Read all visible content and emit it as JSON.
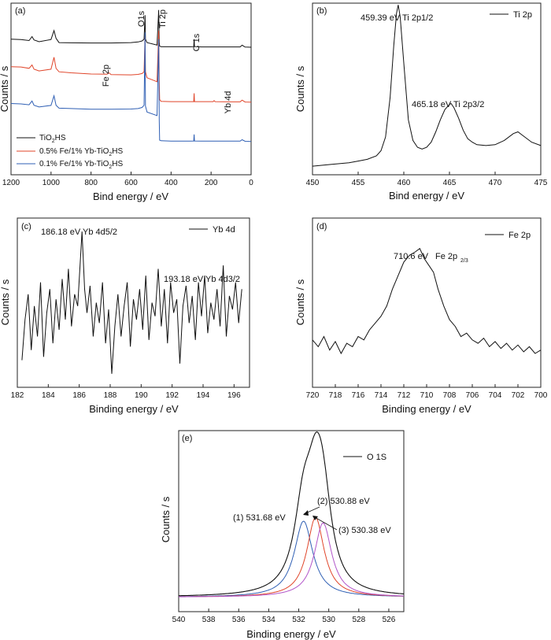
{
  "chart_data": [
    {
      "panel": "(a)",
      "type": "line",
      "xlabel": "Bind energy / eV",
      "ylabel": "Counts / s",
      "xlim": [
        1200,
        0
      ],
      "ylim": [
        0,
        100
      ],
      "xticks": [
        1200,
        1000,
        800,
        600,
        400,
        200,
        0
      ],
      "colors": {
        "s1": "#111111",
        "s2": "#e0452a",
        "s3": "#2f5fb4"
      },
      "series": [
        {
          "name": "TiO₂HS",
          "color": "#111111",
          "x": [
            1200,
            1150,
            1110,
            1095,
            1085,
            1060,
            1000,
            985,
            975,
            960,
            900,
            800,
            700,
            600,
            565,
            545,
            535,
            530,
            528,
            520,
            470,
            462,
            459,
            457,
            450,
            400,
            300,
            287,
            285,
            283,
            250,
            150,
            100,
            55,
            45,
            30,
            0
          ],
          "y": [
            79,
            78.8,
            78.2,
            80.5,
            78.6,
            77.5,
            78.8,
            84,
            79.5,
            77,
            76.9,
            76.8,
            76.8,
            77,
            77.4,
            78,
            79,
            93,
            79,
            77,
            75.6,
            96,
            77,
            75,
            74.6,
            74.6,
            74.6,
            74.7,
            79,
            74.7,
            74.5,
            74.5,
            74.5,
            74.5,
            75.5,
            74.4,
            74.3
          ]
        },
        {
          "name": "0.5% Fe/1% Yb-TiO₂HS",
          "color": "#e0452a",
          "x": [
            1200,
            1150,
            1110,
            1095,
            1085,
            1060,
            1000,
            985,
            975,
            960,
            900,
            800,
            720,
            710,
            700,
            600,
            565,
            545,
            535,
            530,
            528,
            520,
            470,
            462,
            459,
            457,
            450,
            400,
            300,
            287,
            285,
            283,
            250,
            190,
            185,
            180,
            100,
            55,
            45,
            30,
            0
          ],
          "y": [
            63,
            62.8,
            62,
            64,
            61.5,
            60.5,
            61.5,
            68.5,
            62,
            60,
            59.4,
            58.7,
            58.6,
            59.4,
            58.4,
            58.2,
            58.5,
            59,
            60,
            80.5,
            60,
            56.5,
            54.2,
            84,
            55,
            43.8,
            42.8,
            42.6,
            42.6,
            42.6,
            47.5,
            42.6,
            42.6,
            42.6,
            43.2,
            42.6,
            42.5,
            42.5,
            43.5,
            42.4,
            42.3
          ]
        },
        {
          "name": "0.1% Fe/1% Yb-TiO₂HS",
          "color": "#2f5fb4",
          "x": [
            1200,
            1150,
            1110,
            1095,
            1085,
            1060,
            1000,
            985,
            975,
            960,
            900,
            800,
            700,
            600,
            565,
            545,
            535,
            530,
            528,
            520,
            470,
            462,
            459,
            457,
            450,
            400,
            300,
            287,
            285,
            283,
            250,
            150,
            100,
            55,
            45,
            30,
            0
          ],
          "y": [
            41.5,
            41.3,
            40.8,
            43,
            40.5,
            39.5,
            40.4,
            46,
            40.5,
            38.8,
            38.6,
            38.2,
            38.2,
            38.3,
            38.6,
            39.2,
            40.5,
            83,
            40,
            36.5,
            34.5,
            79,
            32,
            20.2,
            19.8,
            19.6,
            19.6,
            19.7,
            23.5,
            19.7,
            19.6,
            19.6,
            19.6,
            19.6,
            20.4,
            19.5,
            19.4
          ]
        }
      ],
      "legend": [
        "TiO₂HS",
        "0.5% Fe/1% Yb-TiO₂HS",
        "0.1% Fe/1% Yb-TiO₂HS"
      ],
      "legend_position": "bottom-left",
      "annotations": [
        "Fe 2p",
        "O1s",
        "Ti 2p",
        "C 1s",
        "Yb 4d"
      ]
    },
    {
      "panel": "(b)",
      "type": "line",
      "xlabel": "Bind energy / eV",
      "ylabel": "Counts / s",
      "xlim": [
        450,
        475
      ],
      "ylim": [
        0,
        100
      ],
      "xticks": [
        450,
        455,
        460,
        465,
        470,
        475
      ],
      "series": [
        {
          "name": "Ti 2p",
          "color": "#111111",
          "x": [
            450,
            452,
            454,
            455,
            456,
            457,
            457.5,
            458,
            458.5,
            458.9,
            459.2,
            459.39,
            459.6,
            460,
            460.5,
            461,
            461.5,
            462,
            462.5,
            463,
            463.5,
            464,
            464.5,
            465,
            465.18,
            465.5,
            466,
            466.5,
            467,
            467.5,
            468,
            469,
            470,
            471,
            472,
            472.5,
            473,
            474,
            475
          ],
          "y": [
            5,
            6,
            7,
            8,
            9,
            11,
            14,
            22,
            45,
            75,
            94,
            99,
            92,
            65,
            32,
            20,
            16,
            15,
            16,
            19,
            25,
            32,
            38,
            41,
            41.5,
            39,
            33,
            26,
            21,
            19,
            17.5,
            17,
            17.5,
            20,
            24,
            25,
            23,
            19,
            17
          ]
        }
      ],
      "legend": [
        "Ti 2p"
      ],
      "legend_position": "top-right",
      "annotations": [
        "459.39 eV Ti 2p1/2",
        "465.18 eV Ti 2p3/2"
      ]
    },
    {
      "panel": "(c)",
      "type": "line",
      "xlabel": "Binding energy / eV",
      "ylabel": "Counts / s",
      "xlim": [
        182,
        197
      ],
      "ylim": [
        0,
        100
      ],
      "xticks": [
        182,
        184,
        186,
        188,
        190,
        192,
        194,
        196
      ],
      "series": [
        {
          "name": "Yb 4d",
          "color": "#111111",
          "x": [
            182.3,
            182.5,
            182.7,
            182.9,
            183.1,
            183.3,
            183.5,
            183.7,
            183.9,
            184.1,
            184.3,
            184.5,
            184.7,
            184.9,
            185.1,
            185.3,
            185.5,
            185.7,
            185.9,
            186.18,
            186.35,
            186.5,
            186.7,
            186.9,
            187.1,
            187.3,
            187.5,
            187.7,
            187.9,
            188.1,
            188.3,
            188.5,
            188.7,
            188.9,
            189.1,
            189.3,
            189.5,
            189.7,
            189.9,
            190.1,
            190.3,
            190.5,
            190.7,
            190.9,
            191.1,
            191.3,
            191.5,
            191.7,
            191.9,
            192.1,
            192.3,
            192.5,
            192.7,
            192.9,
            193.1,
            193.3,
            193.5,
            193.7,
            193.9,
            194.1,
            194.3,
            194.5,
            194.7,
            194.9,
            195.1,
            195.3,
            195.5,
            195.7,
            195.9,
            196.1,
            196.3,
            196.5
          ],
          "y": [
            16,
            40,
            55,
            22,
            48,
            30,
            62,
            18,
            44,
            58,
            26,
            52,
            34,
            64,
            40,
            70,
            36,
            55,
            48,
            92,
            58,
            44,
            60,
            30,
            50,
            38,
            62,
            26,
            46,
            8,
            36,
            55,
            30,
            48,
            62,
            24,
            52,
            40,
            58,
            34,
            66,
            28,
            50,
            42,
            70,
            36,
            58,
            26,
            62,
            44,
            52,
            14,
            48,
            60,
            38,
            54,
            28,
            62,
            42,
            66,
            32,
            50,
            40,
            58,
            36,
            72,
            30,
            54,
            46,
            62,
            38,
            58
          ]
        }
      ],
      "legend": [
        "Yb 4d"
      ],
      "legend_position": "top-right",
      "annotations": [
        "186.18 eV Yb 4d5/2",
        "193.18 eV Yb 4d3/2"
      ]
    },
    {
      "panel": "(d)",
      "type": "line",
      "xlabel": "Binding energy / eV",
      "ylabel": "Counts / s",
      "xlim": [
        720,
        700
      ],
      "ylim": [
        0,
        100
      ],
      "xticks": [
        720,
        718,
        716,
        714,
        712,
        710,
        708,
        706,
        704,
        702,
        700
      ],
      "series": [
        {
          "name": "Fe 2p",
          "color": "#111111",
          "x": [
            720,
            719.5,
            719,
            718.5,
            718,
            717.5,
            717,
            716.5,
            716,
            715.5,
            715,
            714.5,
            714,
            713.5,
            713,
            712.5,
            712,
            711.5,
            711,
            710.6,
            710.2,
            709.8,
            709.4,
            709,
            708.5,
            708,
            707.5,
            707,
            706.5,
            706,
            705.5,
            705,
            704.5,
            704,
            703.5,
            703,
            702.5,
            702,
            701.5,
            701,
            700.5,
            700
          ],
          "y": [
            28,
            24,
            30,
            22,
            27,
            20,
            26,
            24,
            30,
            28,
            34,
            38,
            42,
            48,
            58,
            66,
            74,
            78,
            80,
            82,
            76,
            72,
            68,
            58,
            48,
            40,
            36,
            30,
            32,
            28,
            26,
            29,
            24,
            27,
            23,
            26,
            22,
            25,
            21,
            24,
            20,
            22
          ]
        }
      ],
      "legend": [
        "Fe 2p"
      ],
      "legend_position": "top-right",
      "annotations": [
        "710.6 eV",
        "Fe 2p",
        "2/3"
      ]
    },
    {
      "panel": "(e)",
      "type": "line",
      "xlabel": "Binding energy / eV",
      "ylabel": "Counts / s",
      "xlim": [
        540,
        525
      ],
      "ylim": [
        0,
        100
      ],
      "xticks": [
        540,
        538,
        536,
        534,
        532,
        530,
        528,
        526
      ],
      "peaks": [
        {
          "label": "(1) 531.68 eV",
          "center": 531.68,
          "height": 42,
          "hwhm": 0.75,
          "color": "#2f5fb4"
        },
        {
          "label": "(2) 530.88 eV",
          "center": 530.88,
          "height": 44,
          "hwhm": 0.7,
          "color": "#e0452a"
        },
        {
          "label": "(3) 530.38 eV",
          "center": 530.38,
          "height": 41,
          "hwhm": 0.7,
          "color": "#b154c9"
        }
      ],
      "envelope": {
        "name": "O 1S",
        "color": "#111111"
      },
      "baseline": 8,
      "legend": [
        "O 1S"
      ],
      "legend_position": "top-right",
      "annotations": [
        "(1) 531.68 eV",
        "(2) 530.88 eV",
        "(3) 530.38 eV"
      ]
    }
  ]
}
